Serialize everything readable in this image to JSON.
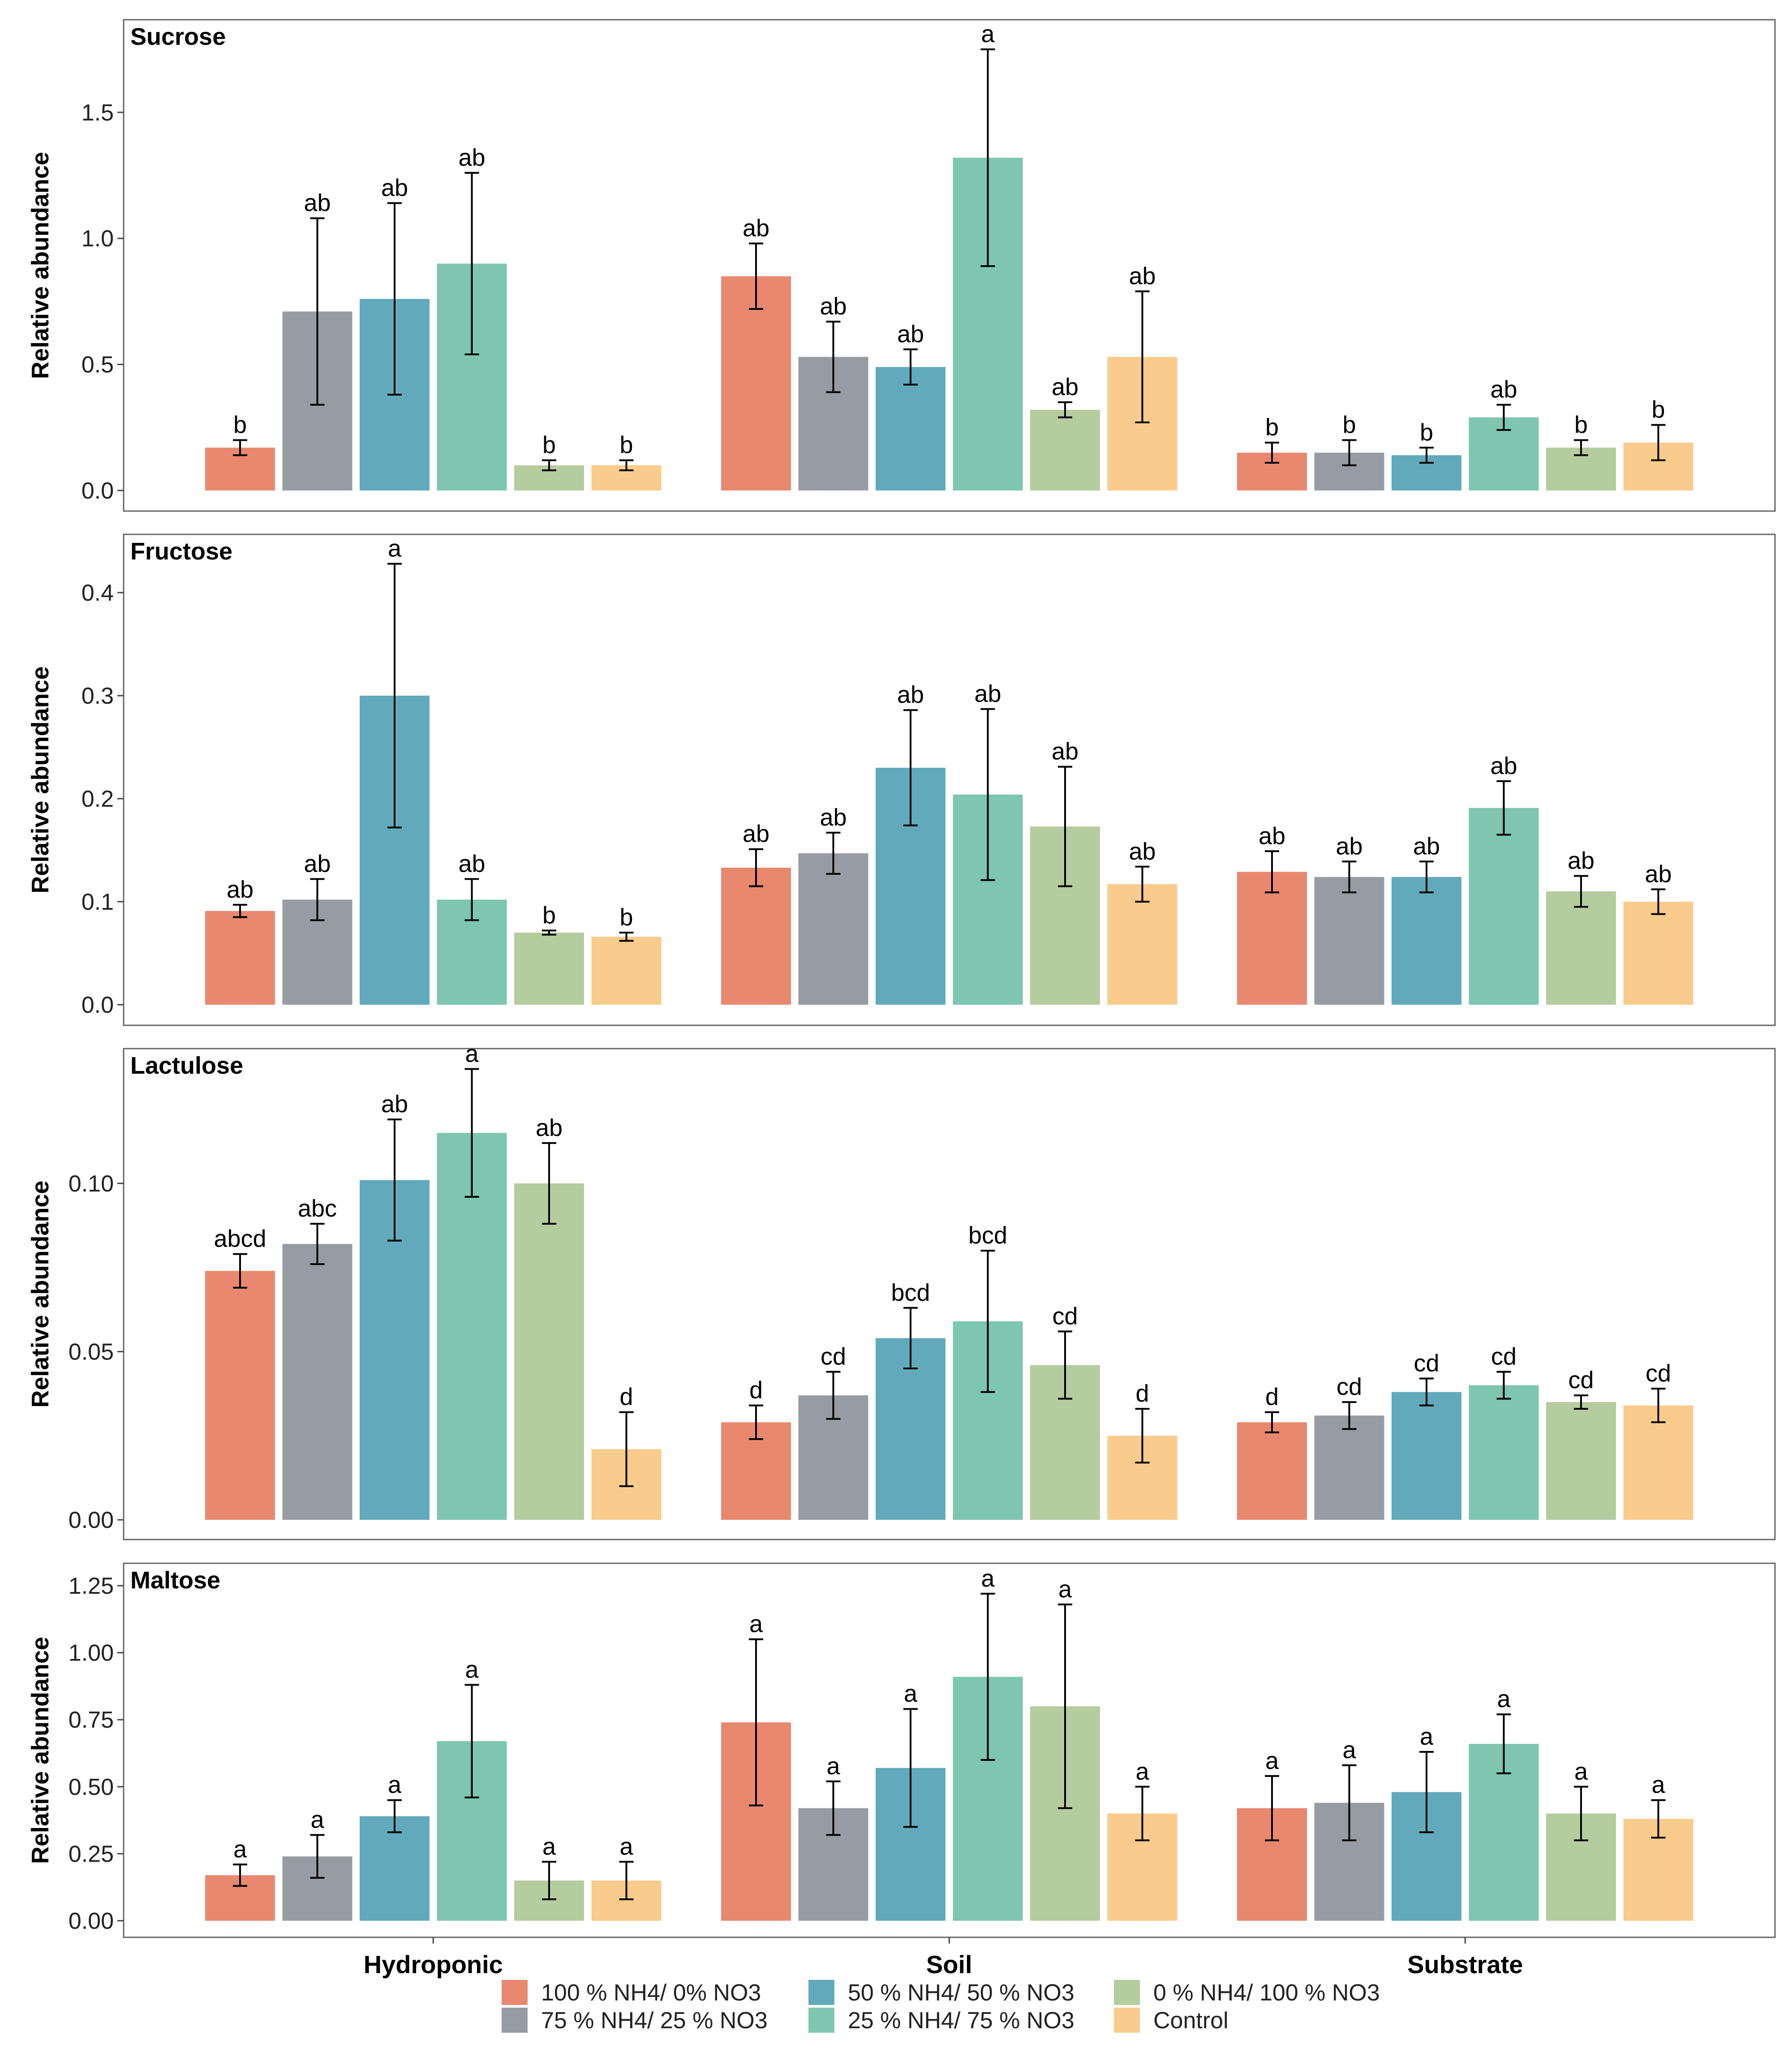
{
  "chart_data": {
    "type": "bar",
    "ylabel": "Relative abundance",
    "categories": [
      "Hydroponic",
      "Soil",
      "Substrate"
    ],
    "treatments": [
      "100 % NH4/ 0% NO3",
      "75 % NH4/ 25 % NO3",
      "50 % NH4/ 50 % NO3",
      "25 % NH4/ 75 % NO3",
      "0 % NH4/ 100 % NO3",
      "Control"
    ],
    "colors": [
      "#E8896F",
      "#979CA4",
      "#62AABB",
      "#7EC6AF",
      "#B5CC9E",
      "#F9CB8C"
    ],
    "panels": [
      {
        "title": "Sucrose",
        "ylim": [
          0,
          1.8
        ],
        "yticks": [
          0.0,
          0.5,
          1.0,
          1.5
        ],
        "ytick_labels": [
          "0.0",
          "0.5",
          "1.0",
          "1.5"
        ],
        "values": [
          [
            0.17,
            0.71,
            0.76,
            0.9,
            0.1,
            0.1
          ],
          [
            0.85,
            0.53,
            0.49,
            1.32,
            0.32,
            0.53
          ],
          [
            0.15,
            0.15,
            0.14,
            0.29,
            0.17,
            0.19
          ]
        ],
        "errors": [
          [
            0.03,
            0.37,
            0.38,
            0.36,
            0.02,
            0.02
          ],
          [
            0.13,
            0.14,
            0.07,
            0.43,
            0.03,
            0.26
          ],
          [
            0.04,
            0.05,
            0.03,
            0.05,
            0.03,
            0.07
          ]
        ],
        "letters": [
          [
            "b",
            "ab",
            "ab",
            "ab",
            "b",
            "b"
          ],
          [
            "ab",
            "ab",
            "ab",
            "a",
            "ab",
            "ab"
          ],
          [
            "b",
            "b",
            "b",
            "ab",
            "b",
            "b"
          ]
        ]
      },
      {
        "title": "Fructose",
        "ylim": [
          0,
          0.44
        ],
        "yticks": [
          0.0,
          0.1,
          0.2,
          0.3,
          0.4
        ],
        "ytick_labels": [
          "0.0",
          "0.1",
          "0.2",
          "0.3",
          "0.4"
        ],
        "values": [
          [
            0.091,
            0.102,
            0.3,
            0.102,
            0.07,
            0.066
          ],
          [
            0.133,
            0.147,
            0.23,
            0.204,
            0.173,
            0.117
          ],
          [
            0.129,
            0.124,
            0.124,
            0.191,
            0.11,
            0.1
          ]
        ],
        "errors": [
          [
            0.006,
            0.02,
            0.128,
            0.02,
            0.002,
            0.004
          ],
          [
            0.018,
            0.02,
            0.056,
            0.083,
            0.058,
            0.017
          ],
          [
            0.02,
            0.015,
            0.015,
            0.026,
            0.015,
            0.012
          ]
        ],
        "letters": [
          [
            "ab",
            "ab",
            "a",
            "ab",
            "b",
            "b"
          ],
          [
            "ab",
            "ab",
            "ab",
            "ab",
            "ab",
            "ab"
          ],
          [
            "ab",
            "ab",
            "ab",
            "ab",
            "ab",
            "ab"
          ]
        ]
      },
      {
        "title": "Lactulose",
        "ylim": [
          0,
          0.135
        ],
        "yticks": [
          0.0,
          0.05,
          0.1
        ],
        "ytick_labels": [
          "0.00",
          "0.05",
          "0.10"
        ],
        "values": [
          [
            0.074,
            0.082,
            0.101,
            0.115,
            0.1,
            0.021
          ],
          [
            0.029,
            0.037,
            0.054,
            0.059,
            0.046,
            0.025
          ],
          [
            0.029,
            0.031,
            0.038,
            0.04,
            0.035,
            0.034
          ]
        ],
        "errors": [
          [
            0.005,
            0.006,
            0.018,
            0.019,
            0.012,
            0.011
          ],
          [
            0.005,
            0.007,
            0.009,
            0.021,
            0.01,
            0.008
          ],
          [
            0.003,
            0.004,
            0.004,
            0.004,
            0.002,
            0.005
          ]
        ],
        "letters": [
          [
            "abcd",
            "abc",
            "ab",
            "a",
            "ab",
            "d"
          ],
          [
            "d",
            "cd",
            "bcd",
            "bcd",
            "cd",
            "d"
          ],
          [
            "d",
            "cd",
            "cd",
            "cd",
            "cd",
            "cd"
          ]
        ]
      },
      {
        "title": "Maltose",
        "ylim": [
          0,
          1.27
        ],
        "yticks": [
          0.0,
          0.25,
          0.5,
          0.75,
          1.0,
          1.25
        ],
        "ytick_labels": [
          "0.00",
          "0.25",
          "0.50",
          "0.75",
          "1.00",
          "1.25"
        ],
        "values": [
          [
            0.17,
            0.24,
            0.39,
            0.67,
            0.15,
            0.15
          ],
          [
            0.74,
            0.42,
            0.57,
            0.91,
            0.8,
            0.4
          ],
          [
            0.42,
            0.44,
            0.48,
            0.66,
            0.4,
            0.38
          ]
        ],
        "errors": [
          [
            0.04,
            0.08,
            0.06,
            0.21,
            0.07,
            0.07
          ],
          [
            0.31,
            0.1,
            0.22,
            0.31,
            0.38,
            0.1
          ],
          [
            0.12,
            0.14,
            0.15,
            0.11,
            0.1,
            0.07
          ]
        ],
        "letters": [
          [
            "a",
            "a",
            "a",
            "a",
            "a",
            "a"
          ],
          [
            "a",
            "a",
            "a",
            "a",
            "a",
            "a"
          ],
          [
            "a",
            "a",
            "a",
            "a",
            "a",
            "a"
          ]
        ]
      }
    ]
  }
}
